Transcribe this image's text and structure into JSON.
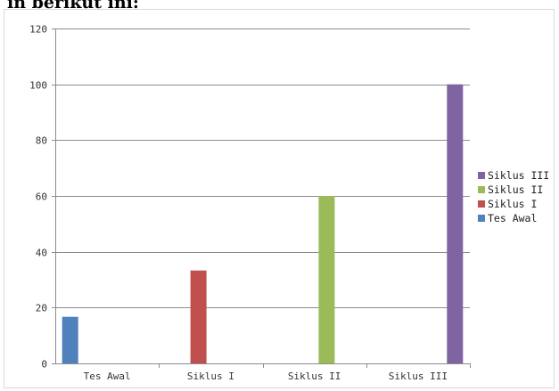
{
  "page": {
    "top_text": "in berikut ini:"
  },
  "chart_data": {
    "type": "bar",
    "categories": [
      "Tes Awal",
      "Siklus I",
      "Siklus II",
      "Siklus III"
    ],
    "series": [
      {
        "name": "Tes Awal",
        "color": "#4f81bd",
        "values": [
          16.7,
          0,
          0,
          0
        ]
      },
      {
        "name": "Siklus I",
        "color": "#c0504d",
        "values": [
          0,
          33.3,
          0,
          0
        ]
      },
      {
        "name": "Siklus II",
        "color": "#9bbb59",
        "values": [
          0,
          0,
          60,
          0
        ]
      },
      {
        "name": "Siklus III",
        "color": "#8064a2",
        "values": [
          0,
          0,
          0,
          100
        ]
      }
    ],
    "yticks": [
      "0",
      "20",
      "40",
      "60",
      "80",
      "100",
      "120"
    ],
    "ylim": [
      0,
      120
    ],
    "grid": true,
    "legend": {
      "position": "right",
      "order": [
        "Siklus III",
        "Siklus II",
        "Siklus I",
        "Tes Awal"
      ]
    }
  }
}
